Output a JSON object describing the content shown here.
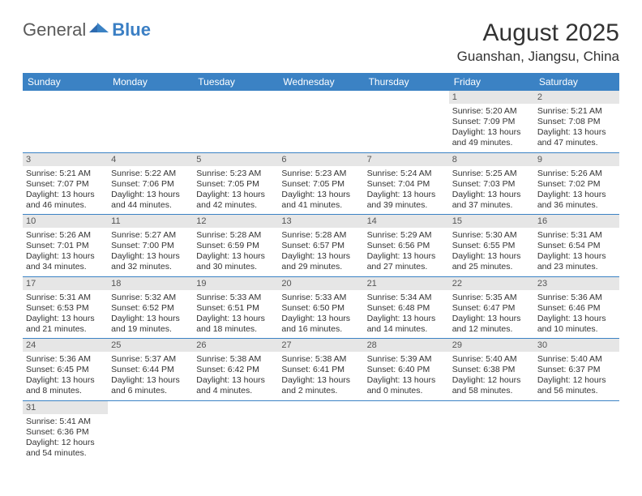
{
  "logo": {
    "text_general": "General",
    "text_blue": "Blue"
  },
  "header": {
    "month_title": "August 2025",
    "location": "Guanshan, Jiangsu, China"
  },
  "colors": {
    "header_bg": "#3b82c4",
    "header_text": "#ffffff",
    "daynum_bg": "#e6e6e6",
    "cell_border": "#3b82c4",
    "page_bg": "#ffffff",
    "text_primary": "#333333"
  },
  "calendar": {
    "day_names": [
      "Sunday",
      "Monday",
      "Tuesday",
      "Wednesday",
      "Thursday",
      "Friday",
      "Saturday"
    ],
    "weeks": [
      [
        null,
        null,
        null,
        null,
        null,
        {
          "n": "1",
          "sr": "Sunrise: 5:20 AM",
          "ss": "Sunset: 7:09 PM",
          "dl1": "Daylight: 13 hours",
          "dl2": "and 49 minutes."
        },
        {
          "n": "2",
          "sr": "Sunrise: 5:21 AM",
          "ss": "Sunset: 7:08 PM",
          "dl1": "Daylight: 13 hours",
          "dl2": "and 47 minutes."
        }
      ],
      [
        {
          "n": "3",
          "sr": "Sunrise: 5:21 AM",
          "ss": "Sunset: 7:07 PM",
          "dl1": "Daylight: 13 hours",
          "dl2": "and 46 minutes."
        },
        {
          "n": "4",
          "sr": "Sunrise: 5:22 AM",
          "ss": "Sunset: 7:06 PM",
          "dl1": "Daylight: 13 hours",
          "dl2": "and 44 minutes."
        },
        {
          "n": "5",
          "sr": "Sunrise: 5:23 AM",
          "ss": "Sunset: 7:05 PM",
          "dl1": "Daylight: 13 hours",
          "dl2": "and 42 minutes."
        },
        {
          "n": "6",
          "sr": "Sunrise: 5:23 AM",
          "ss": "Sunset: 7:05 PM",
          "dl1": "Daylight: 13 hours",
          "dl2": "and 41 minutes."
        },
        {
          "n": "7",
          "sr": "Sunrise: 5:24 AM",
          "ss": "Sunset: 7:04 PM",
          "dl1": "Daylight: 13 hours",
          "dl2": "and 39 minutes."
        },
        {
          "n": "8",
          "sr": "Sunrise: 5:25 AM",
          "ss": "Sunset: 7:03 PM",
          "dl1": "Daylight: 13 hours",
          "dl2": "and 37 minutes."
        },
        {
          "n": "9",
          "sr": "Sunrise: 5:26 AM",
          "ss": "Sunset: 7:02 PM",
          "dl1": "Daylight: 13 hours",
          "dl2": "and 36 minutes."
        }
      ],
      [
        {
          "n": "10",
          "sr": "Sunrise: 5:26 AM",
          "ss": "Sunset: 7:01 PM",
          "dl1": "Daylight: 13 hours",
          "dl2": "and 34 minutes."
        },
        {
          "n": "11",
          "sr": "Sunrise: 5:27 AM",
          "ss": "Sunset: 7:00 PM",
          "dl1": "Daylight: 13 hours",
          "dl2": "and 32 minutes."
        },
        {
          "n": "12",
          "sr": "Sunrise: 5:28 AM",
          "ss": "Sunset: 6:59 PM",
          "dl1": "Daylight: 13 hours",
          "dl2": "and 30 minutes."
        },
        {
          "n": "13",
          "sr": "Sunrise: 5:28 AM",
          "ss": "Sunset: 6:57 PM",
          "dl1": "Daylight: 13 hours",
          "dl2": "and 29 minutes."
        },
        {
          "n": "14",
          "sr": "Sunrise: 5:29 AM",
          "ss": "Sunset: 6:56 PM",
          "dl1": "Daylight: 13 hours",
          "dl2": "and 27 minutes."
        },
        {
          "n": "15",
          "sr": "Sunrise: 5:30 AM",
          "ss": "Sunset: 6:55 PM",
          "dl1": "Daylight: 13 hours",
          "dl2": "and 25 minutes."
        },
        {
          "n": "16",
          "sr": "Sunrise: 5:31 AM",
          "ss": "Sunset: 6:54 PM",
          "dl1": "Daylight: 13 hours",
          "dl2": "and 23 minutes."
        }
      ],
      [
        {
          "n": "17",
          "sr": "Sunrise: 5:31 AM",
          "ss": "Sunset: 6:53 PM",
          "dl1": "Daylight: 13 hours",
          "dl2": "and 21 minutes."
        },
        {
          "n": "18",
          "sr": "Sunrise: 5:32 AM",
          "ss": "Sunset: 6:52 PM",
          "dl1": "Daylight: 13 hours",
          "dl2": "and 19 minutes."
        },
        {
          "n": "19",
          "sr": "Sunrise: 5:33 AM",
          "ss": "Sunset: 6:51 PM",
          "dl1": "Daylight: 13 hours",
          "dl2": "and 18 minutes."
        },
        {
          "n": "20",
          "sr": "Sunrise: 5:33 AM",
          "ss": "Sunset: 6:50 PM",
          "dl1": "Daylight: 13 hours",
          "dl2": "and 16 minutes."
        },
        {
          "n": "21",
          "sr": "Sunrise: 5:34 AM",
          "ss": "Sunset: 6:48 PM",
          "dl1": "Daylight: 13 hours",
          "dl2": "and 14 minutes."
        },
        {
          "n": "22",
          "sr": "Sunrise: 5:35 AM",
          "ss": "Sunset: 6:47 PM",
          "dl1": "Daylight: 13 hours",
          "dl2": "and 12 minutes."
        },
        {
          "n": "23",
          "sr": "Sunrise: 5:36 AM",
          "ss": "Sunset: 6:46 PM",
          "dl1": "Daylight: 13 hours",
          "dl2": "and 10 minutes."
        }
      ],
      [
        {
          "n": "24",
          "sr": "Sunrise: 5:36 AM",
          "ss": "Sunset: 6:45 PM",
          "dl1": "Daylight: 13 hours",
          "dl2": "and 8 minutes."
        },
        {
          "n": "25",
          "sr": "Sunrise: 5:37 AM",
          "ss": "Sunset: 6:44 PM",
          "dl1": "Daylight: 13 hours",
          "dl2": "and 6 minutes."
        },
        {
          "n": "26",
          "sr": "Sunrise: 5:38 AM",
          "ss": "Sunset: 6:42 PM",
          "dl1": "Daylight: 13 hours",
          "dl2": "and 4 minutes."
        },
        {
          "n": "27",
          "sr": "Sunrise: 5:38 AM",
          "ss": "Sunset: 6:41 PM",
          "dl1": "Daylight: 13 hours",
          "dl2": "and 2 minutes."
        },
        {
          "n": "28",
          "sr": "Sunrise: 5:39 AM",
          "ss": "Sunset: 6:40 PM",
          "dl1": "Daylight: 13 hours",
          "dl2": "and 0 minutes."
        },
        {
          "n": "29",
          "sr": "Sunrise: 5:40 AM",
          "ss": "Sunset: 6:38 PM",
          "dl1": "Daylight: 12 hours",
          "dl2": "and 58 minutes."
        },
        {
          "n": "30",
          "sr": "Sunrise: 5:40 AM",
          "ss": "Sunset: 6:37 PM",
          "dl1": "Daylight: 12 hours",
          "dl2": "and 56 minutes."
        }
      ],
      [
        {
          "n": "31",
          "sr": "Sunrise: 5:41 AM",
          "ss": "Sunset: 6:36 PM",
          "dl1": "Daylight: 12 hours",
          "dl2": "and 54 minutes."
        },
        null,
        null,
        null,
        null,
        null,
        null
      ]
    ]
  }
}
